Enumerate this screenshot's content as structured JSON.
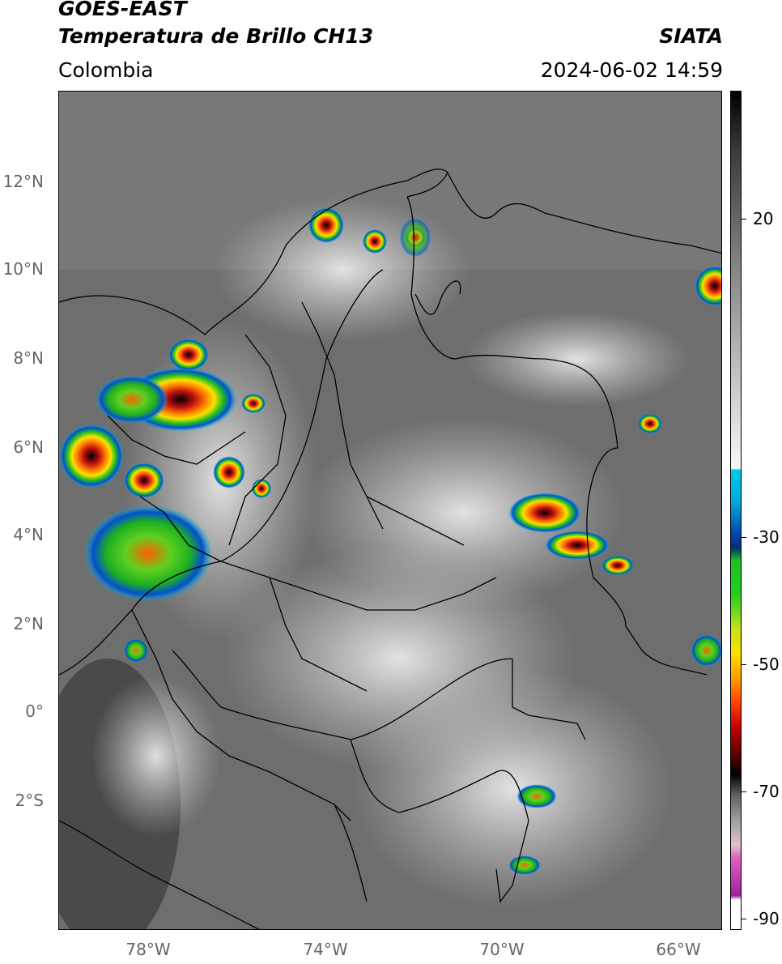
{
  "header": {
    "satellite": "GOES-EAST",
    "product": "Temperatura de Brillo CH13",
    "institution": "SIATA",
    "region": "Colombia",
    "datetime": "2024-06-02 14:59"
  },
  "map": {
    "lat_ticks": [
      "12°N",
      "10°N",
      "8°N",
      "6°N",
      "4°N",
      "2°N",
      "0°",
      "2°S"
    ],
    "lon_ticks": [
      "78°W",
      "74°W",
      "70°W",
      "66°W"
    ]
  },
  "colorbar": {
    "ticks": [
      "20",
      "-30",
      "-50",
      "-70",
      "-90"
    ],
    "colors": {
      "white": "#ffffff",
      "magenta": "#c040c0",
      "cyan": "#00c0e0",
      "blue": "#0040c0",
      "green": "#20c020",
      "yellow": "#ffe000",
      "red": "#e02010",
      "black": "#000000"
    }
  }
}
